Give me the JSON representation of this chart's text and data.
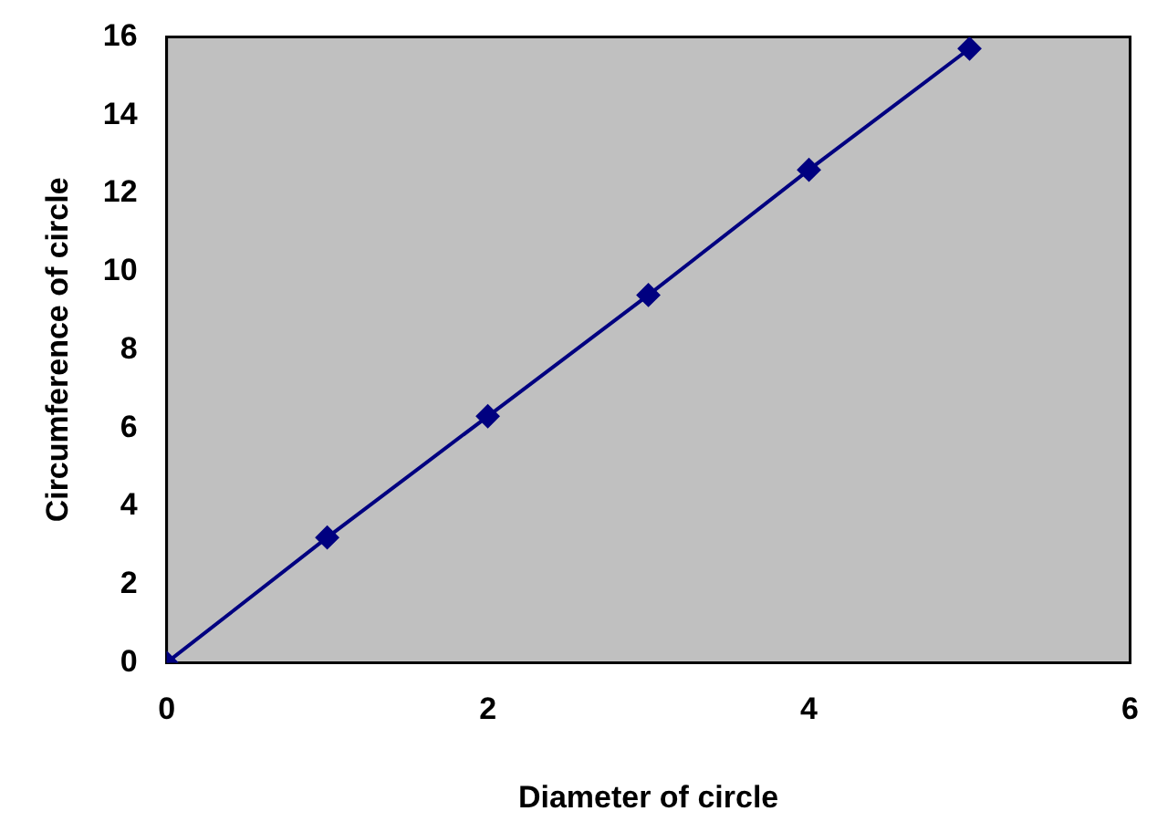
{
  "chart_data": {
    "type": "line",
    "xlabel": "Diameter of circle",
    "ylabel": "Circumference of circle",
    "x": [
      0,
      1,
      2,
      3,
      4,
      5
    ],
    "series": [
      {
        "color": "#000080",
        "values": [
          0,
          3.2,
          6.3,
          9.4,
          12.6,
          15.7
        ]
      }
    ],
    "xlim": [
      0,
      6
    ],
    "xticks": [
      0,
      2,
      4,
      6
    ],
    "ylim": [
      0,
      16
    ],
    "yticks": [
      0,
      2,
      4,
      6,
      8,
      10,
      12,
      14,
      16
    ],
    "grid": false,
    "legend": false,
    "marker": "diamond",
    "line_style": "solid"
  }
}
